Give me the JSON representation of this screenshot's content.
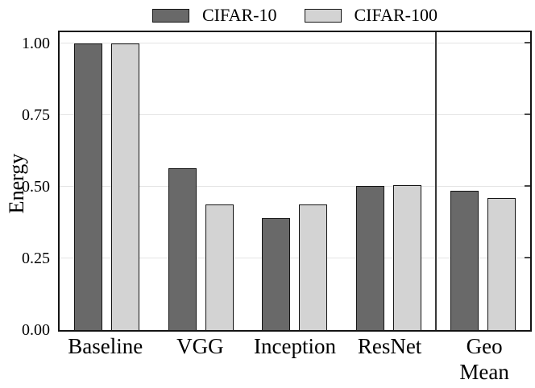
{
  "chart_data": {
    "type": "bar",
    "title": "",
    "xlabel": "",
    "ylabel": "Energy",
    "categories": [
      "Baseline",
      "VGG",
      "Inception",
      "ResNet",
      "Geo\nMean"
    ],
    "series": [
      {
        "name": "CIFAR-10",
        "color": "#696969",
        "values": [
          1.0,
          0.565,
          0.39,
          0.504,
          0.486
        ]
      },
      {
        "name": "CIFAR-100",
        "color": "#d3d3d3",
        "values": [
          1.0,
          0.437,
          0.437,
          0.507,
          0.46
        ]
      }
    ],
    "ylim": [
      0,
      1.048
    ],
    "ytick_labels": [
      "0.00",
      "0.25",
      "0.50",
      "0.75",
      "1.00"
    ],
    "ytick_values": [
      0,
      0.25,
      0.5,
      0.75,
      1.0
    ],
    "grid": true,
    "legend_position": "top-center",
    "separator_after_category_index": 3,
    "bar_edge_color": "#141414",
    "grid_color": "#e4e4e4",
    "separator_color": "#383838",
    "axis_color": "#141414"
  }
}
